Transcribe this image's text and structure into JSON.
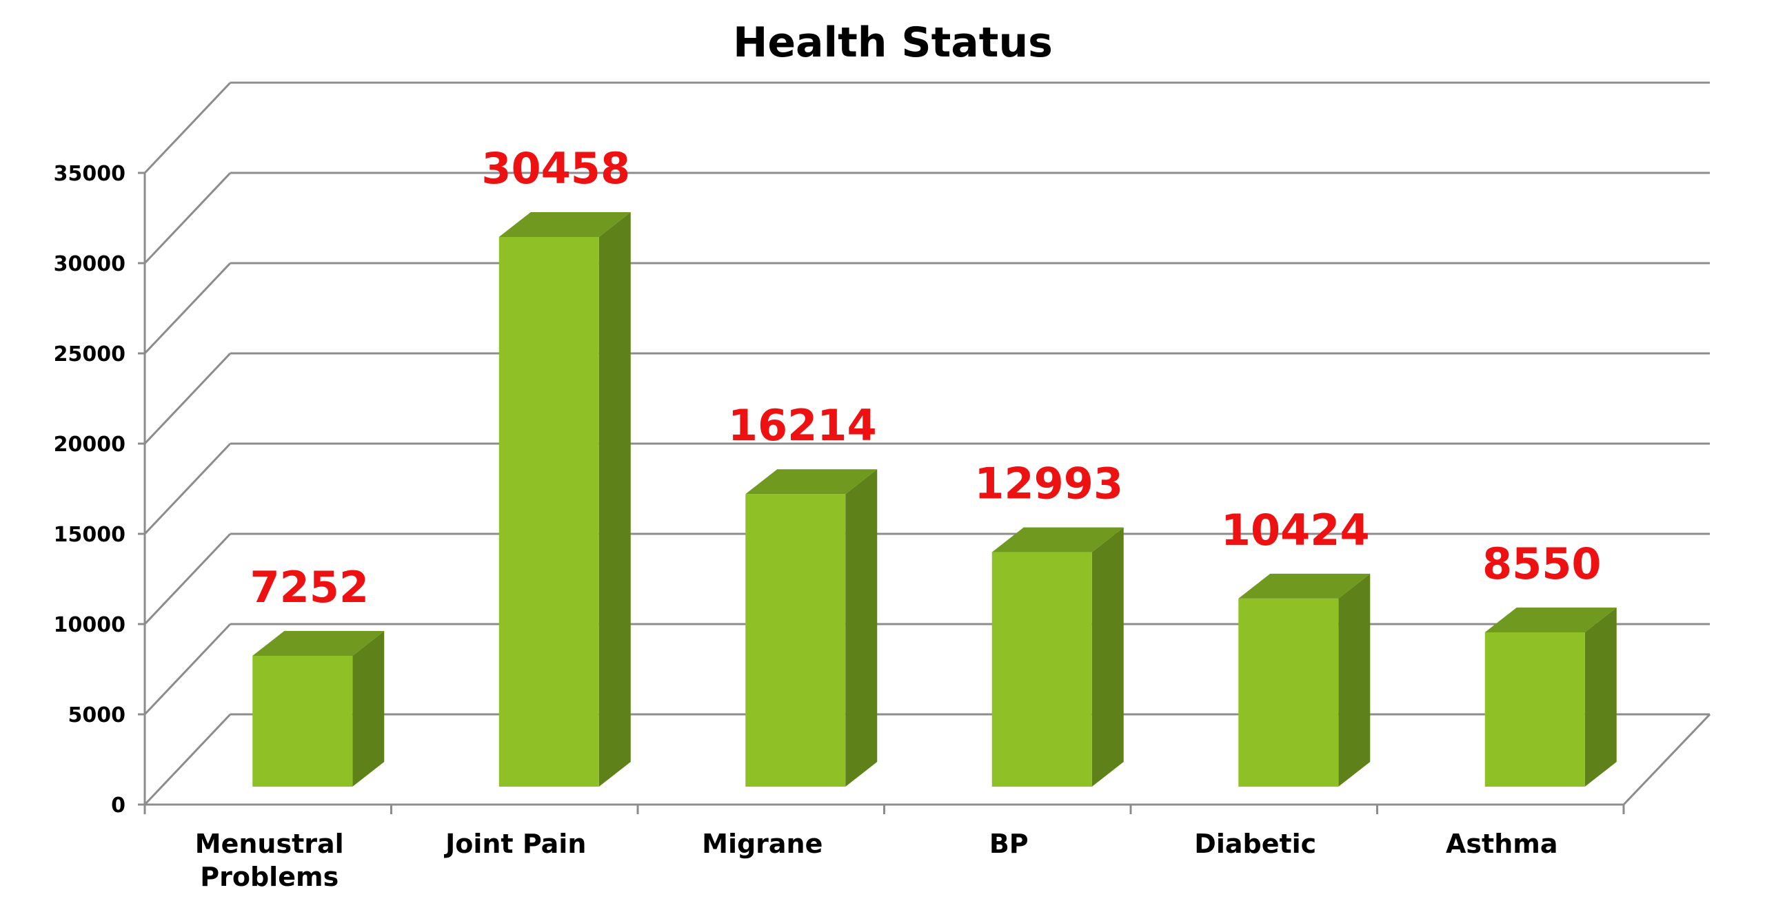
{
  "chart_data": {
    "type": "bar",
    "title": "Health Status",
    "categories": [
      "Menustral\nProblems",
      "Joint Pain",
      "Migrane",
      "BP",
      "Diabetic",
      "Asthma"
    ],
    "values": [
      7252,
      30458,
      16214,
      12993,
      10424,
      8550
    ],
    "data_labels": [
      "7252",
      "30458",
      "16214",
      "12993",
      "10424",
      "8550"
    ],
    "ylim": [
      0,
      35000
    ],
    "yticks": [
      "0",
      "5000",
      "10000",
      "15000",
      "20000",
      "25000",
      "30000",
      "35000"
    ],
    "ytick_values": [
      0,
      5000,
      10000,
      15000,
      20000,
      25000,
      30000,
      35000
    ],
    "grid": true,
    "legend": "none",
    "style": "3d-column",
    "colors": {
      "bar_front": "#8fc127",
      "bar_side": "#5e8219",
      "bar_top": "#6f9a1f",
      "data_label": "#ee1111",
      "grid": "#8c8c8c"
    }
  }
}
